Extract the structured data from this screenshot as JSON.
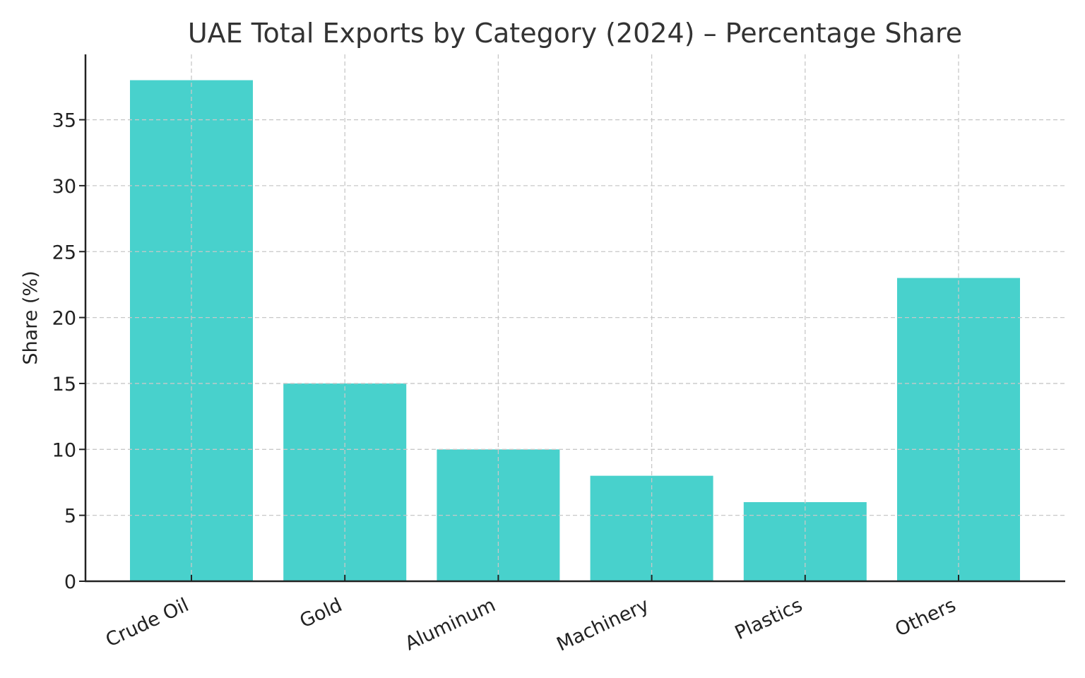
{
  "chart_data": {
    "type": "bar",
    "title": "UAE Total Exports by Category (2024) – Percentage Share",
    "xlabel": "",
    "ylabel": "Share (%)",
    "categories": [
      "Crude Oil",
      "Gold",
      "Aluminum",
      "Machinery",
      "Plastics",
      "Others"
    ],
    "values": [
      38,
      15,
      10,
      8,
      6,
      23
    ],
    "ylim": [
      0,
      40
    ],
    "yticks": [
      0,
      5,
      10,
      15,
      20,
      25,
      30,
      35
    ],
    "grid": true,
    "legend": null,
    "bar_color": "#48D1CC"
  }
}
